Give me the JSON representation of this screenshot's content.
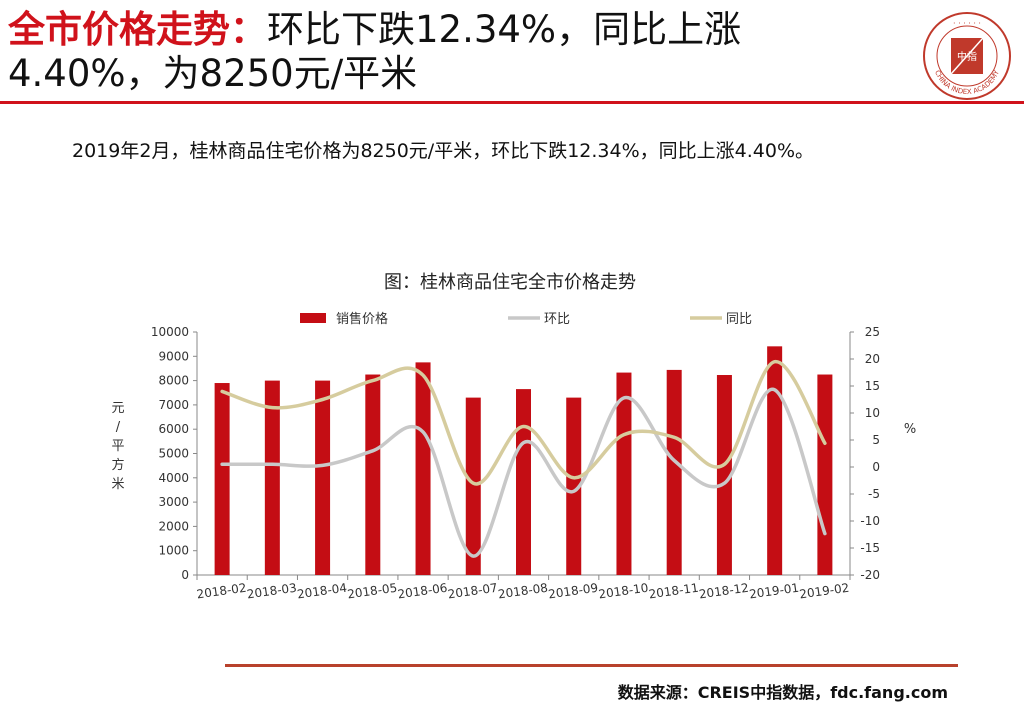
{
  "header": {
    "title_accent": "全市价格走势：",
    "title_line1_rest": "环比下跌12.34%，同比上涨",
    "title_line2": "4.40%，为8250元/平米"
  },
  "logo": {
    "icon": "china-index-academy-seal",
    "center_text": "中指",
    "ring_text": "CHINA INDEX ACADEMY"
  },
  "summary": "2019年2月，桂林商品住宅价格为8250元/平米，环比下跌12.34%，同比上涨4.40%。",
  "footer": {
    "source": "数据来源：CREIS中指数据，fdc.fang.com"
  },
  "colors": {
    "accent": "#d0121b",
    "bar": "#c40d14",
    "mom_line": "#c8c8c8",
    "yoy_line": "#d6cc9e"
  },
  "chart_data": {
    "type": "bar",
    "title": "图：桂林商品住宅全市价格走势",
    "categories": [
      "2018-02",
      "2018-03",
      "2018-04",
      "2018-05",
      "2018-06",
      "2018-07",
      "2018-08",
      "2018-09",
      "2018-10",
      "2018-11",
      "2018-12",
      "2019-01",
      "2019-02"
    ],
    "series": [
      {
        "name": "销售价格",
        "type": "bar",
        "axis": "left",
        "values": [
          7900,
          8000,
          8000,
          8250,
          8750,
          7300,
          7650,
          7300,
          8330,
          8440,
          8230,
          9410,
          8250
        ]
      },
      {
        "name": "环比",
        "type": "line",
        "axis": "right",
        "values": [
          0.5,
          0.5,
          0.3,
          3.0,
          6.5,
          -16.5,
          4.5,
          -4.5,
          12.8,
          1.2,
          -3.0,
          14.3,
          -12.34
        ]
      },
      {
        "name": "同比",
        "type": "line",
        "axis": "right",
        "values": [
          14.0,
          11.0,
          12.5,
          16.0,
          17.0,
          -3.0,
          7.5,
          -2.0,
          6.0,
          5.5,
          0.5,
          19.5,
          4.4
        ]
      }
    ],
    "y_left": {
      "label": "元/平方米",
      "range": [
        0,
        10000
      ],
      "ticks": [
        0,
        1000,
        2000,
        3000,
        4000,
        5000,
        6000,
        7000,
        8000,
        9000,
        10000
      ]
    },
    "y_right": {
      "label": "%",
      "range": [
        -20,
        25
      ],
      "ticks": [
        -20,
        -15,
        -10,
        -5,
        0,
        5,
        10,
        15,
        20,
        25
      ]
    },
    "legend_position": "top",
    "grid": false
  }
}
